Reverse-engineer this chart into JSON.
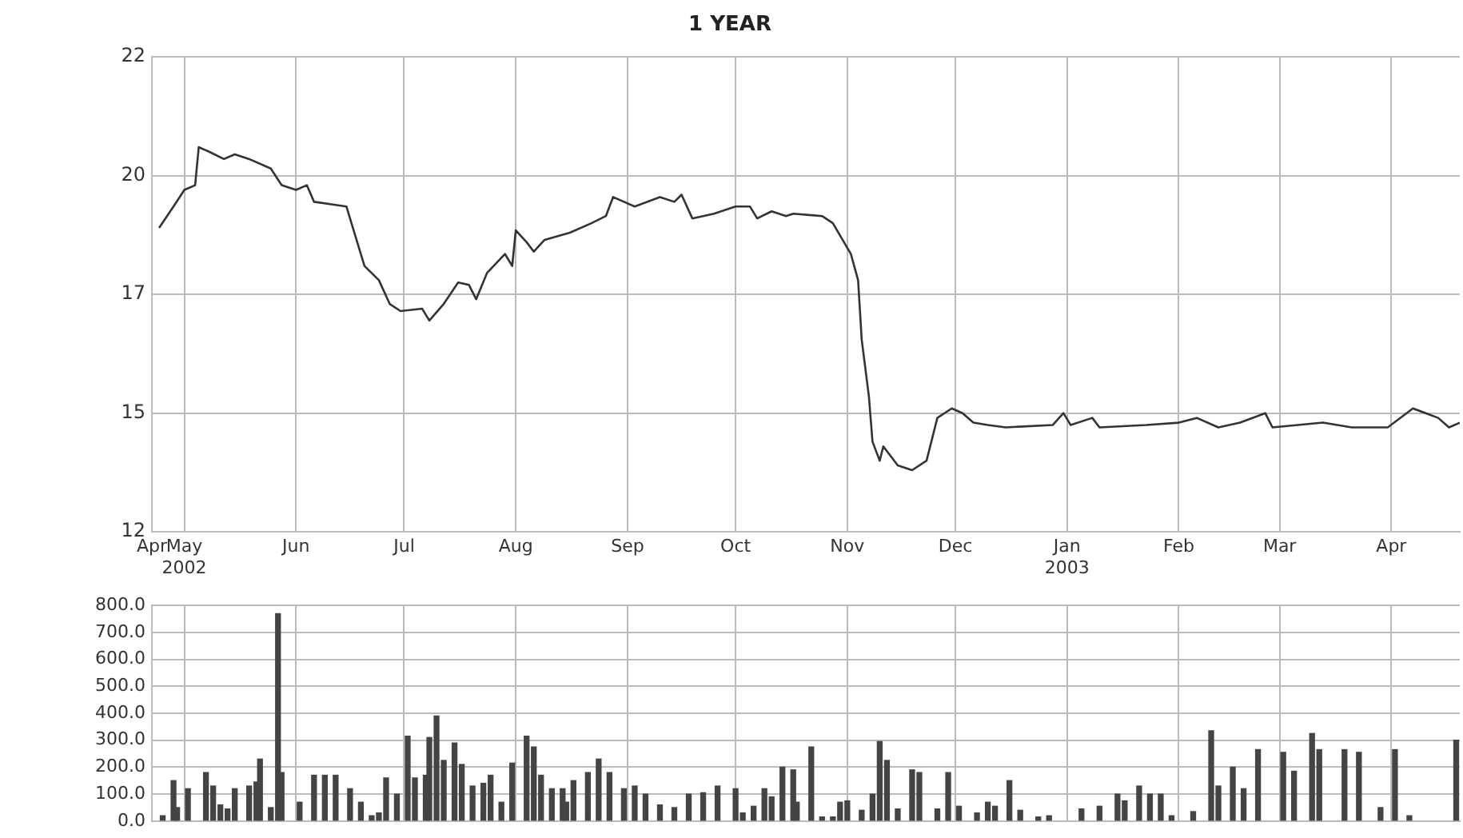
{
  "chart_data": [
    {
      "type": "line",
      "title": "1 YEAR",
      "color": "#333333",
      "grid": true,
      "xlim": [
        "2002-04-22",
        "2003-04-20"
      ],
      "xticks": [
        {
          "value": "2002-04-22",
          "label": "Apr"
        },
        {
          "value": "2002-05-01",
          "label": "May\n2002"
        },
        {
          "value": "2002-06-01",
          "label": "Jun"
        },
        {
          "value": "2002-07-01",
          "label": "Jul"
        },
        {
          "value": "2002-08-01",
          "label": "Aug"
        },
        {
          "value": "2002-09-01",
          "label": "Sep"
        },
        {
          "value": "2002-10-01",
          "label": "Oct"
        },
        {
          "value": "2002-11-01",
          "label": "Nov"
        },
        {
          "value": "2002-12-01",
          "label": "Dec"
        },
        {
          "value": "2003-01-01",
          "label": "Jan\n2003"
        },
        {
          "value": "2003-02-01",
          "label": "Feb"
        },
        {
          "value": "2003-03-01",
          "label": "Mar"
        },
        {
          "value": "2003-04-01",
          "label": "Apr"
        }
      ],
      "ylim": [
        12.5,
        22.5
      ],
      "yticks": [
        {
          "value": 12.5,
          "label": "12"
        },
        {
          "value": 15,
          "label": "15"
        },
        {
          "value": 17.5,
          "label": "17"
        },
        {
          "value": 20,
          "label": "20"
        },
        {
          "value": 22.5,
          "label": "22"
        }
      ],
      "x": [
        "2002-04-24",
        "2002-04-28",
        "2002-05-01",
        "2002-05-04",
        "2002-05-05",
        "2002-05-08",
        "2002-05-12",
        "2002-05-15",
        "2002-05-19",
        "2002-05-25",
        "2002-05-28",
        "2002-06-01",
        "2002-06-04",
        "2002-06-06",
        "2002-06-15",
        "2002-06-17",
        "2002-06-20",
        "2002-06-24",
        "2002-06-27",
        "2002-06-30",
        "2002-07-06",
        "2002-07-08",
        "2002-07-12",
        "2002-07-16",
        "2002-07-19",
        "2002-07-21",
        "2002-07-24",
        "2002-07-29",
        "2002-07-31",
        "2002-08-01",
        "2002-08-04",
        "2002-08-06",
        "2002-08-09",
        "2002-08-16",
        "2002-08-22",
        "2002-08-26",
        "2002-08-28",
        "2002-09-03",
        "2002-09-10",
        "2002-09-14",
        "2002-09-16",
        "2002-09-19",
        "2002-09-25",
        "2002-10-01",
        "2002-10-05",
        "2002-10-07",
        "2002-10-11",
        "2002-10-15",
        "2002-10-17",
        "2002-10-25",
        "2002-10-28",
        "2002-11-02",
        "2002-11-04",
        "2002-11-05",
        "2002-11-07",
        "2002-11-08",
        "2002-11-10",
        "2002-11-11",
        "2002-11-15",
        "2002-11-19",
        "2002-11-23",
        "2002-11-26",
        "2002-11-30",
        "2002-12-03",
        "2002-12-06",
        "2002-12-10",
        "2002-12-15",
        "2002-12-28",
        "2002-12-31",
        "2003-01-02",
        "2003-01-08",
        "2003-01-10",
        "2003-01-23",
        "2003-02-01",
        "2003-02-06",
        "2003-02-12",
        "2003-02-18",
        "2003-02-25",
        "2003-02-27",
        "2003-03-13",
        "2003-03-21",
        "2003-03-31",
        "2003-04-07",
        "2003-04-14",
        "2003-04-17",
        "2003-04-20"
      ],
      "values": [
        18.9,
        19.35,
        19.7,
        19.8,
        20.6,
        20.5,
        20.35,
        20.45,
        20.35,
        20.15,
        19.8,
        19.7,
        19.8,
        19.45,
        19.35,
        18.85,
        18.1,
        17.8,
        17.3,
        17.15,
        17.2,
        16.95,
        17.3,
        17.75,
        17.7,
        17.4,
        17.95,
        18.35,
        18.1,
        18.85,
        18.6,
        18.4,
        18.65,
        18.8,
        19,
        19.15,
        19.55,
        19.35,
        19.55,
        19.45,
        19.6,
        19.1,
        19.2,
        19.35,
        19.35,
        19.1,
        19.25,
        19.15,
        19.2,
        19.15,
        19,
        18.35,
        17.8,
        16.55,
        15.35,
        14.4,
        14,
        14.3,
        13.9,
        13.8,
        14,
        14.9,
        15.1,
        15,
        14.8,
        14.75,
        14.7,
        14.75,
        15,
        14.75,
        14.9,
        14.7,
        14.75,
        14.8,
        14.9,
        14.7,
        14.8,
        15,
        14.7,
        14.8,
        14.7,
        14.7,
        15.1,
        14.9,
        14.7,
        14.8
      ]
    },
    {
      "type": "bar",
      "color": "#444444",
      "grid": true,
      "tick_labels": "y",
      "xlim": [
        "2002-04-22",
        "2003-04-20"
      ],
      "xticks": [
        {
          "value": "2002-04-22",
          "label": null
        },
        {
          "value": "2002-05-01",
          "label": null
        },
        {
          "value": "2002-06-01",
          "label": null
        },
        {
          "value": "2002-07-01",
          "label": null
        },
        {
          "value": "2002-08-01",
          "label": null
        },
        {
          "value": "2002-09-01",
          "label": null
        },
        {
          "value": "2002-10-01",
          "label": null
        },
        {
          "value": "2002-11-01",
          "label": null
        },
        {
          "value": "2002-12-01",
          "label": null
        },
        {
          "value": "2003-01-01",
          "label": null
        },
        {
          "value": "2003-02-01",
          "label": null
        },
        {
          "value": "2003-03-01",
          "label": null
        },
        {
          "value": "2003-04-01",
          "label": null
        }
      ],
      "ylim": [
        0,
        800
      ],
      "yticks": [
        {
          "value": 0,
          "label": "0.0"
        },
        {
          "value": 100,
          "label": "100.0"
        },
        {
          "value": 200,
          "label": "200.0"
        },
        {
          "value": 300,
          "label": "300.0"
        },
        {
          "value": 400,
          "label": "400.0"
        },
        {
          "value": 500,
          "label": "500.0"
        },
        {
          "value": 600,
          "label": "600.0"
        },
        {
          "value": 700,
          "label": "700.0"
        },
        {
          "value": 800,
          "label": "800.0"
        }
      ],
      "x": [
        "2002-04-25",
        "2002-04-28",
        "2002-04-29",
        "2002-05-02",
        "2002-05-07",
        "2002-05-09",
        "2002-05-11",
        "2002-05-13",
        "2002-05-15",
        "2002-05-19",
        "2002-05-21",
        "2002-05-22",
        "2002-05-25",
        "2002-05-27",
        "2002-05-28",
        "2002-06-02",
        "2002-06-06",
        "2002-06-09",
        "2002-06-12",
        "2002-06-16",
        "2002-06-19",
        "2002-06-22",
        "2002-06-24",
        "2002-06-26",
        "2002-06-29",
        "2002-07-02",
        "2002-07-04",
        "2002-07-07",
        "2002-07-08",
        "2002-07-10",
        "2002-07-12",
        "2002-07-15",
        "2002-07-17",
        "2002-07-20",
        "2002-07-23",
        "2002-07-25",
        "2002-07-28",
        "2002-07-31",
        "2002-08-04",
        "2002-08-06",
        "2002-08-08",
        "2002-08-11",
        "2002-08-14",
        "2002-08-15",
        "2002-08-17",
        "2002-08-21",
        "2002-08-24",
        "2002-08-27",
        "2002-08-31",
        "2002-09-03",
        "2002-09-06",
        "2002-09-10",
        "2002-09-14",
        "2002-09-18",
        "2002-09-22",
        "2002-09-26",
        "2002-10-01",
        "2002-10-03",
        "2002-10-06",
        "2002-10-09",
        "2002-10-11",
        "2002-10-14",
        "2002-10-17",
        "2002-10-18",
        "2002-10-22",
        "2002-10-25",
        "2002-10-28",
        "2002-10-30",
        "2002-11-01",
        "2002-11-05",
        "2002-11-08",
        "2002-11-10",
        "2002-11-12",
        "2002-11-15",
        "2002-11-19",
        "2002-11-21",
        "2002-11-26",
        "2002-11-29",
        "2002-12-02",
        "2002-12-07",
        "2002-12-10",
        "2002-12-12",
        "2002-12-16",
        "2002-12-19",
        "2002-12-24",
        "2002-12-27",
        "2003-01-05",
        "2003-01-10",
        "2003-01-15",
        "2003-01-17",
        "2003-01-21",
        "2003-01-24",
        "2003-01-27",
        "2003-01-30",
        "2003-02-05",
        "2003-02-10",
        "2003-02-12",
        "2003-02-16",
        "2003-02-19",
        "2003-02-23",
        "2003-03-02",
        "2003-03-05",
        "2003-03-10",
        "2003-03-12",
        "2003-03-19",
        "2003-03-23",
        "2003-03-29",
        "2003-04-02",
        "2003-04-06",
        "2003-04-19"
      ],
      "values": [
        20,
        150,
        50,
        120,
        180,
        130,
        60,
        45,
        120,
        130,
        145,
        230,
        50,
        770,
        180,
        70,
        170,
        170,
        170,
        120,
        70,
        20,
        30,
        160,
        100,
        315,
        160,
        170,
        310,
        390,
        225,
        290,
        210,
        130,
        140,
        170,
        70,
        215,
        315,
        275,
        170,
        120,
        120,
        70,
        150,
        180,
        230,
        180,
        120,
        130,
        100,
        60,
        50,
        100,
        105,
        130,
        120,
        30,
        55,
        120,
        90,
        200,
        190,
        70,
        275,
        15,
        15,
        70,
        75,
        40,
        100,
        295,
        225,
        45,
        190,
        180,
        45,
        180,
        55,
        30,
        70,
        55,
        150,
        40,
        15,
        20,
        45,
        55,
        100,
        75,
        130,
        100,
        100,
        20,
        35,
        335,
        130,
        200,
        120,
        265,
        255,
        185,
        325,
        265,
        265,
        255,
        50,
        265,
        20,
        300
      ]
    }
  ]
}
